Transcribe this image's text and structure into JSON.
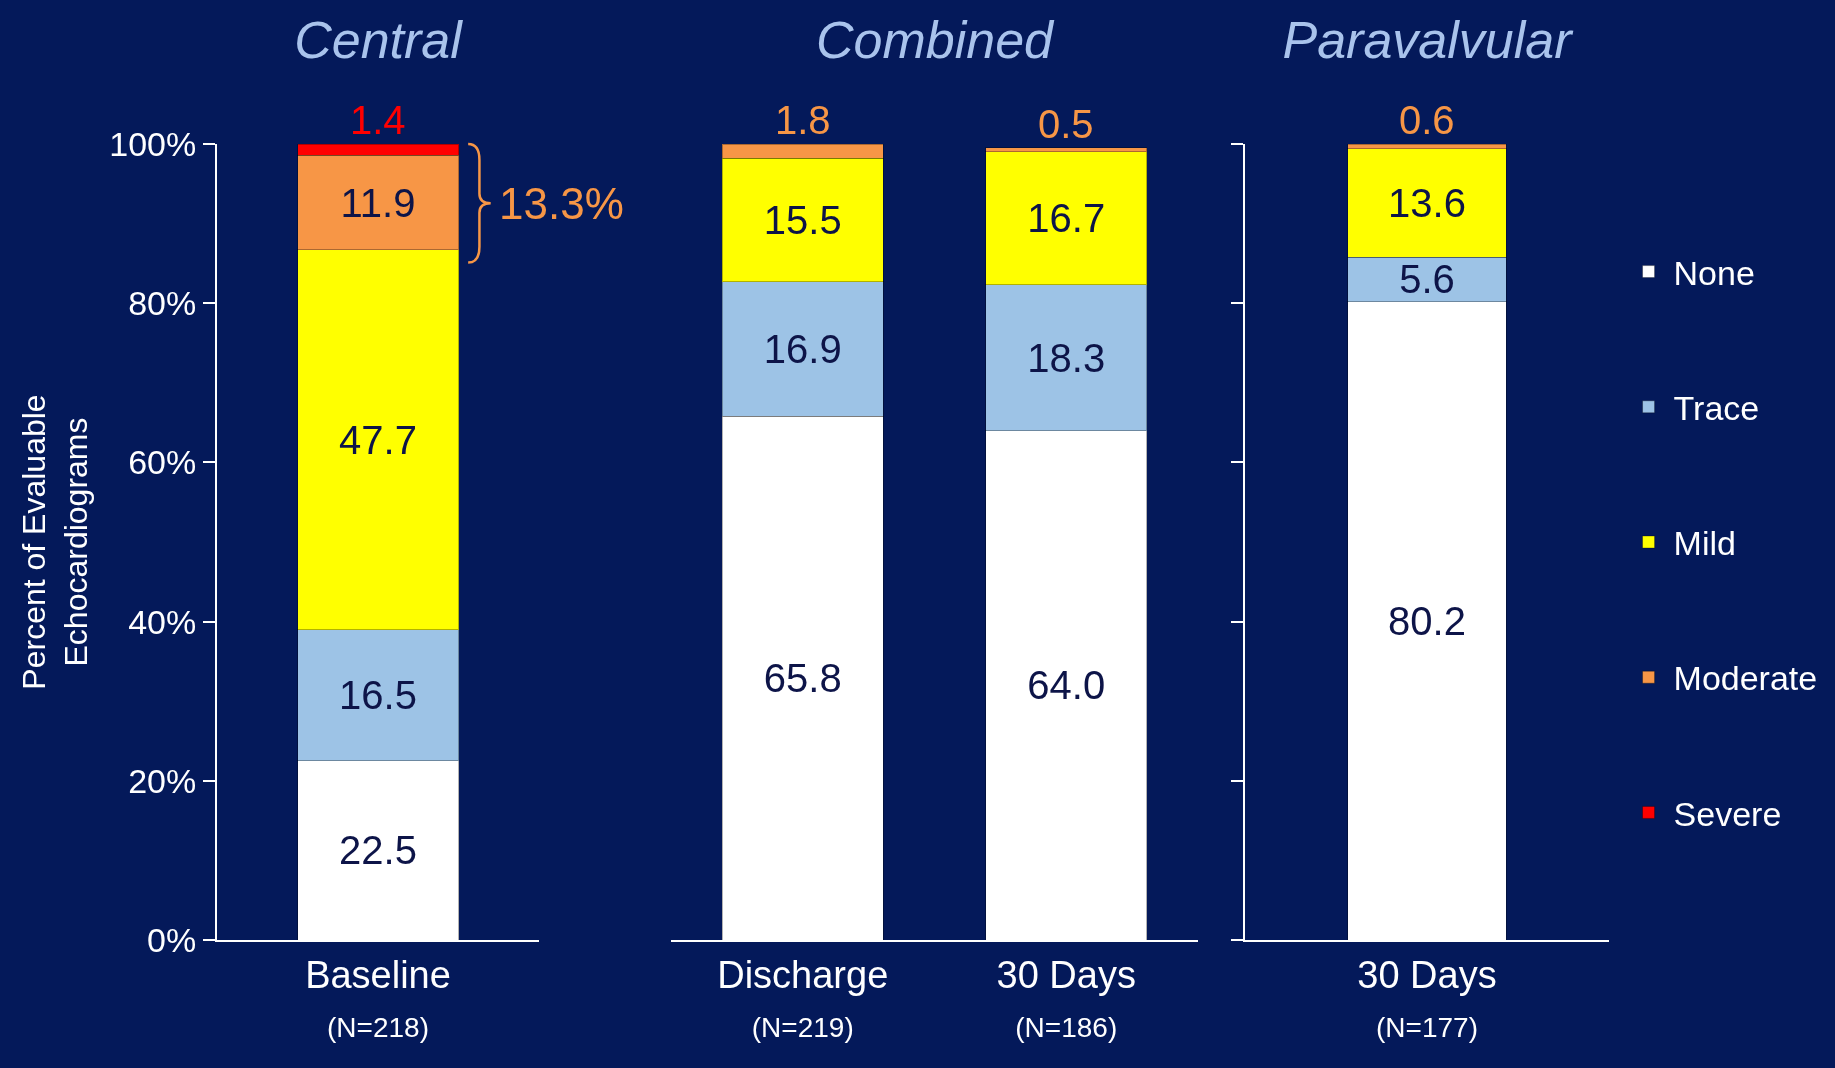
{
  "chart_data": [
    {
      "type": "bar",
      "title": "Central",
      "ylabel": "Percent of Evaluable\nEchocardiograms",
      "categories": [
        "Baseline\n(N=218)"
      ],
      "stacked": true,
      "ylim": [
        0,
        100
      ],
      "yticks": [
        {
          "value": 0,
          "label": "0%"
        },
        {
          "value": 20,
          "label": "20%"
        },
        {
          "value": 40,
          "label": "40%"
        },
        {
          "value": 60,
          "label": "60%"
        },
        {
          "value": 80,
          "label": "80%"
        },
        {
          "value": 100,
          "label": "100%"
        }
      ],
      "series": [
        {
          "color": "#ffffff",
          "values": [
            22.5
          ],
          "value_labels": [
            "22.5"
          ]
        },
        {
          "color": "#9dc3e6",
          "values": [
            16.5
          ],
          "value_labels": [
            "16.5"
          ]
        },
        {
          "color": "#ffff00",
          "values": [
            47.7
          ],
          "value_labels": [
            "47.7"
          ]
        },
        {
          "color": "#f79646",
          "values": [
            11.9
          ],
          "value_labels": [
            "11.9"
          ]
        },
        {
          "color": "#ff0000",
          "values": [
            1.4
          ],
          "value_labels": [
            "1.4"
          ]
        }
      ],
      "annotations": [
        "13.3%"
      ]
    },
    {
      "type": "bar",
      "title": "Combined",
      "categories": [
        "Discharge\n(N=219)",
        "30 Days\n(N=186)"
      ],
      "stacked": true,
      "ylim": [
        0,
        100
      ],
      "tick_labels": "x",
      "series": [
        {
          "color": "#ffffff",
          "values": [
            65.8,
            64.0
          ],
          "value_labels": [
            "65.8",
            "64.0"
          ]
        },
        {
          "color": "#9dc3e6",
          "values": [
            16.9,
            18.3
          ],
          "value_labels": [
            "16.9",
            "18.3"
          ]
        },
        {
          "color": "#ffff00",
          "values": [
            15.5,
            16.7
          ],
          "value_labels": [
            "15.5",
            "16.7"
          ]
        },
        {
          "color": "#f79646",
          "values": [
            1.8,
            0.5
          ],
          "value_labels": [
            "1.8",
            "0.5"
          ]
        }
      ]
    },
    {
      "type": "bar",
      "title": "Paravalvular",
      "categories": [
        "30 Days\n(N=177)"
      ],
      "stacked": true,
      "ylim": [
        0,
        100
      ],
      "yticks": [
        0,
        20,
        40,
        60,
        80,
        100
      ],
      "tick_labels": "x",
      "legend": "right",
      "series": [
        {
          "name": "None",
          "color": "#ffffff",
          "values": [
            80.2
          ],
          "value_labels": [
            "80.2"
          ]
        },
        {
          "name": "Trace",
          "color": "#9dc3e6",
          "values": [
            5.6
          ],
          "value_labels": [
            "5.6"
          ]
        },
        {
          "name": "Mild",
          "color": "#ffff00",
          "values": [
            13.6
          ],
          "value_labels": [
            "13.6"
          ]
        },
        {
          "name": "Moderate",
          "color": "#f79646",
          "values": [
            0.6
          ],
          "value_labels": [
            "0.6"
          ]
        },
        {
          "name": "Severe",
          "color": "#ff0000",
          "values": [
            null
          ],
          "value_labels": [
            null
          ]
        }
      ]
    }
  ]
}
